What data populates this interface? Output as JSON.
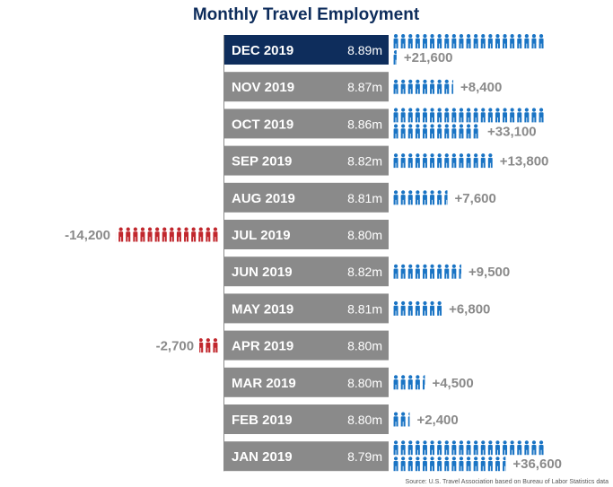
{
  "colors": {
    "title": "#0e2d5c",
    "highlight_bar": "#0e2d5c",
    "bar": "#8a8a8a",
    "bar_text": "#ffffff",
    "gain": "#1a74c4",
    "loss": "#c1272d",
    "change_text": "#8a8a8a",
    "source_text": "#555555",
    "axis": "#8a8a8a"
  },
  "chart_data": {
    "type": "pictogram",
    "title": "Monthly Travel Employment",
    "people_per_icon": 1000,
    "months": [
      {
        "label": "DEC 2019",
        "employment": "8.89m",
        "change_label": "+21,600",
        "change": 21600,
        "highlight": true
      },
      {
        "label": "NOV 2019",
        "employment": "8.87m",
        "change_label": "+8,400",
        "change": 8400,
        "highlight": false
      },
      {
        "label": "OCT 2019",
        "employment": "8.86m",
        "change_label": "+33,100",
        "change": 33100,
        "highlight": false
      },
      {
        "label": "SEP 2019",
        "employment": "8.82m",
        "change_label": "+13,800",
        "change": 13800,
        "highlight": false
      },
      {
        "label": "AUG 2019",
        "employment": "8.81m",
        "change_label": "+7,600",
        "change": 7600,
        "highlight": false
      },
      {
        "label": "JUL 2019",
        "employment": "8.80m",
        "change_label": "-14,200",
        "change": -14200,
        "highlight": false
      },
      {
        "label": "JUN 2019",
        "employment": "8.82m",
        "change_label": "+9,500",
        "change": 9500,
        "highlight": false
      },
      {
        "label": "MAY 2019",
        "employment": "8.81m",
        "change_label": "+6,800",
        "change": 6800,
        "highlight": false
      },
      {
        "label": "APR 2019",
        "employment": "8.80m",
        "change_label": "-2,700",
        "change": -2700,
        "highlight": false
      },
      {
        "label": "MAR 2019",
        "employment": "8.80m",
        "change_label": "+4,500",
        "change": 4500,
        "highlight": false
      },
      {
        "label": "FEB 2019",
        "employment": "8.80m",
        "change_label": "+2,400",
        "change": 2400,
        "highlight": false
      },
      {
        "label": "JAN 2019",
        "employment": "8.79m",
        "change_label": "+36,600",
        "change": 36600,
        "highlight": false
      }
    ],
    "source": "Source: U.S. Travel Association based on Bureau of Labor Statistics data"
  }
}
